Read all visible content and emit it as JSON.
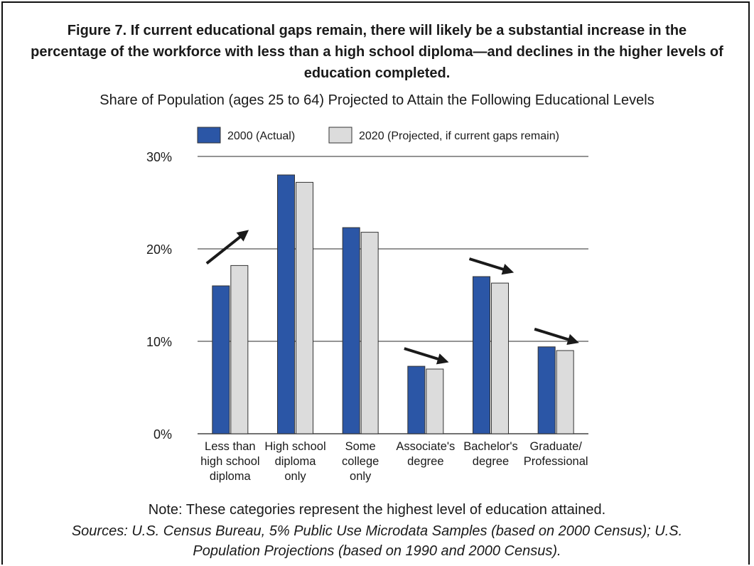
{
  "figure": {
    "title": "Figure 7. If current educational gaps remain, there will likely be a substantial increase in the percentage of the workforce with less than a high school diploma—and declines in the higher levels of education completed.",
    "subtitle": "Share of Population (ages 25 to 64) Projected to Attain the Following Educational Levels",
    "note": "Note: These categories represent the highest level of education attained.",
    "sources": "Sources: U.S. Census Bureau, 5% Public Use Microdata Samples (based on 2000 Census); U.S. Population Projections (based on 1990 and 2000 Census)."
  },
  "chart_data": {
    "type": "bar",
    "categories": [
      [
        "Less than",
        "high school",
        "diploma"
      ],
      [
        "High school",
        "diploma",
        "only"
      ],
      [
        "Some",
        "college",
        "only"
      ],
      [
        "Associate's",
        "degree"
      ],
      [
        "Bachelor's",
        "degree"
      ],
      [
        "Graduate/",
        "Professional"
      ]
    ],
    "series": [
      {
        "name": "2000 (Actual)",
        "color": "#2b56a6",
        "values": [
          16.0,
          28.0,
          22.3,
          7.3,
          17.0,
          9.4
        ]
      },
      {
        "name": "2020 (Projected, if current gaps remain)",
        "color": "#dcdcdc",
        "values": [
          18.2,
          27.2,
          21.8,
          7.0,
          16.3,
          9.0
        ]
      }
    ],
    "ylim": [
      0,
      30
    ],
    "yticks": [
      0,
      10,
      20,
      30
    ],
    "ytick_labels": [
      "0%",
      "10%",
      "20%",
      "30%"
    ],
    "grid": true,
    "legend": "top",
    "trend_arrows": [
      {
        "category": 0,
        "direction": "up"
      },
      {
        "category": 3,
        "direction": "down"
      },
      {
        "category": 4,
        "direction": "down"
      },
      {
        "category": 5,
        "direction": "down"
      }
    ]
  }
}
